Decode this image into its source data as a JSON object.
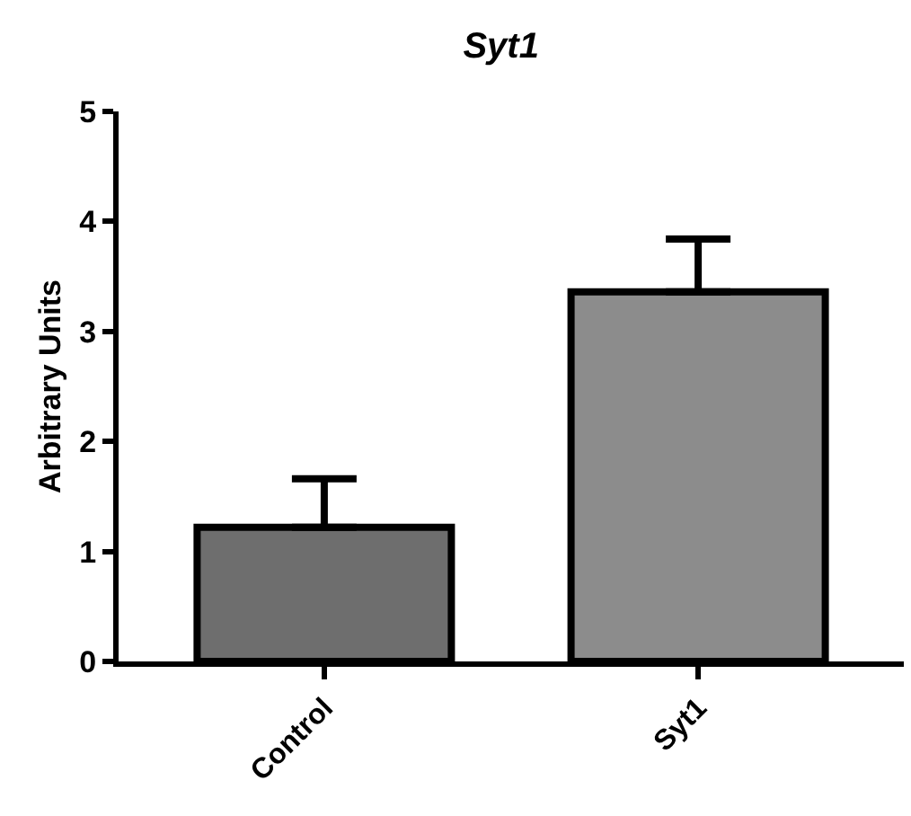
{
  "chart_data": {
    "type": "bar",
    "title": "Syt1",
    "ylabel": "Arbitrary Units",
    "categories": [
      "Control",
      "Syt1"
    ],
    "values": [
      1.22,
      3.36
    ],
    "errors": [
      [
        1.22,
        1.66
      ],
      [
        3.36,
        3.84
      ]
    ],
    "colors": [
      "#6e6e6e",
      "#8c8c8c"
    ],
    "ylim": [
      0,
      5
    ],
    "yticks": [
      0,
      1,
      2,
      3,
      4,
      5
    ],
    "grid": false
  }
}
